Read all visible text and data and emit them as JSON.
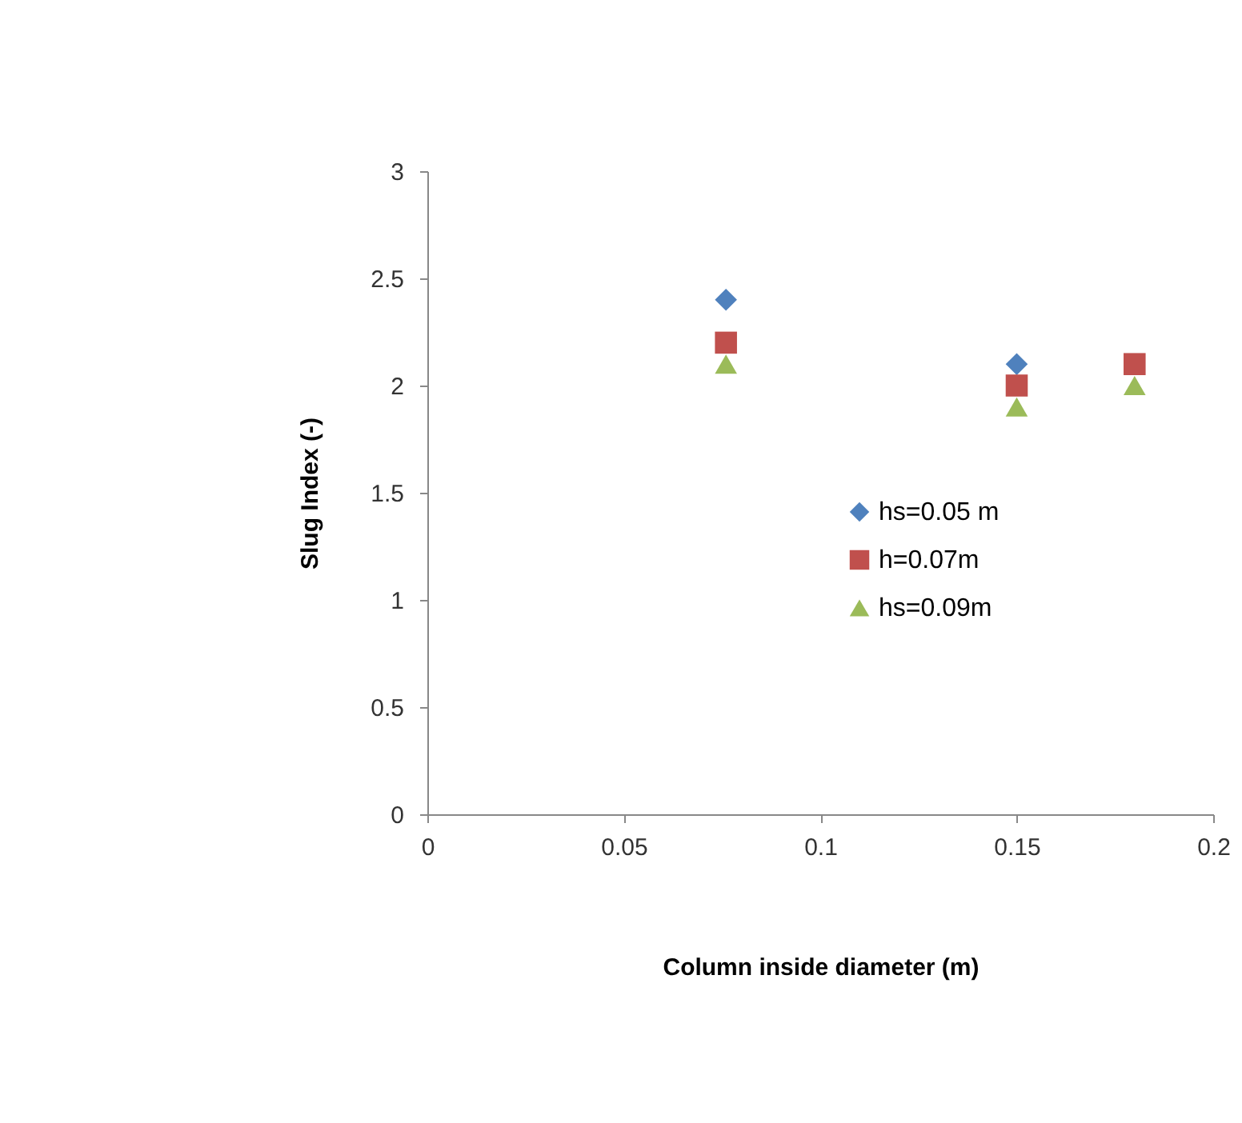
{
  "chart_data": {
    "type": "scatter",
    "xlabel": "Column inside diameter (m)",
    "ylabel": "Slug Index (-)",
    "x": [
      0.076,
      0.15,
      0.18
    ],
    "xlim": [
      0,
      0.2
    ],
    "xticks": [
      0,
      0.05,
      0.1,
      0.15,
      0.2
    ],
    "ylim": [
      0,
      3
    ],
    "yticks": [
      0,
      0.5,
      1,
      1.5,
      2,
      2.5,
      3
    ],
    "grid": false,
    "legend": "right",
    "series": [
      {
        "name": "hs=0.05 m",
        "color": "#4f81bd",
        "marker": "diamond",
        "values": [
          2.4,
          2.1,
          null
        ]
      },
      {
        "name": "h=0.07m",
        "color": "#c0504d",
        "marker": "square",
        "values": [
          2.2,
          2.0,
          2.1
        ]
      },
      {
        "name": "hs=0.09m",
        "color": "#9bbb59",
        "marker": "triangle",
        "values": [
          2.1,
          1.9,
          2.0
        ]
      }
    ]
  }
}
